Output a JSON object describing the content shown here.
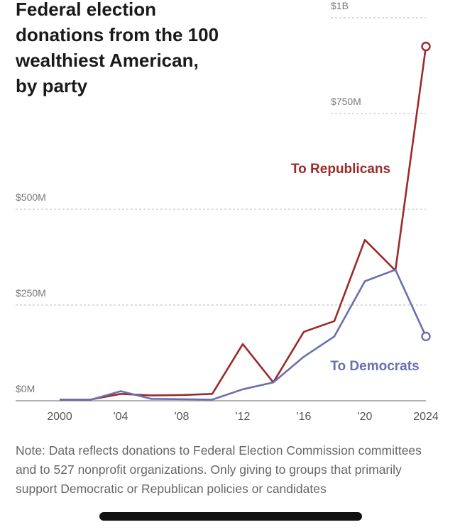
{
  "chart_data": {
    "type": "line",
    "title_lines": [
      "Federal election",
      "donations from the 100",
      "wealthiest American,",
      "by party"
    ],
    "x": [
      2000,
      2002,
      2004,
      2006,
      2008,
      2010,
      2012,
      2014,
      2016,
      2018,
      2020,
      2022,
      2024
    ],
    "x_tick_labels": [
      {
        "value": 2000,
        "label": "2000"
      },
      {
        "value": 2004,
        "label": "'04"
      },
      {
        "value": 2008,
        "label": "'08"
      },
      {
        "value": 2012,
        "label": "'12"
      },
      {
        "value": 2016,
        "label": "'16"
      },
      {
        "value": 2020,
        "label": "'20"
      },
      {
        "value": 2024,
        "label": "2024"
      }
    ],
    "y_ticks": [
      {
        "value": 0,
        "label": "$0M"
      },
      {
        "value": 250,
        "label": "$250M"
      },
      {
        "value": 500,
        "label": "$500M"
      },
      {
        "value": 750,
        "label": "$750M"
      },
      {
        "value": 1000,
        "label": "$1B"
      }
    ],
    "ylim": [
      0,
      1000
    ],
    "xlim": [
      2000,
      2024
    ],
    "grid": true,
    "series": [
      {
        "name": "To Republicans",
        "color": "#9b2a2a",
        "values": [
          3,
          3,
          18,
          14,
          15,
          18,
          148,
          48,
          180,
          208,
          420,
          340,
          925
        ]
      },
      {
        "name": "To Democrats",
        "color": "#6a6fb0",
        "values": [
          3,
          2,
          25,
          5,
          4,
          3,
          30,
          48,
          115,
          168,
          312,
          342,
          168
        ]
      }
    ]
  },
  "note": "Note: Data reflects donations to Federal Election Commission committees and to 527 nonprofit organizations. Only giving to groups that primarily support Democratic or Republican policies or candidates"
}
